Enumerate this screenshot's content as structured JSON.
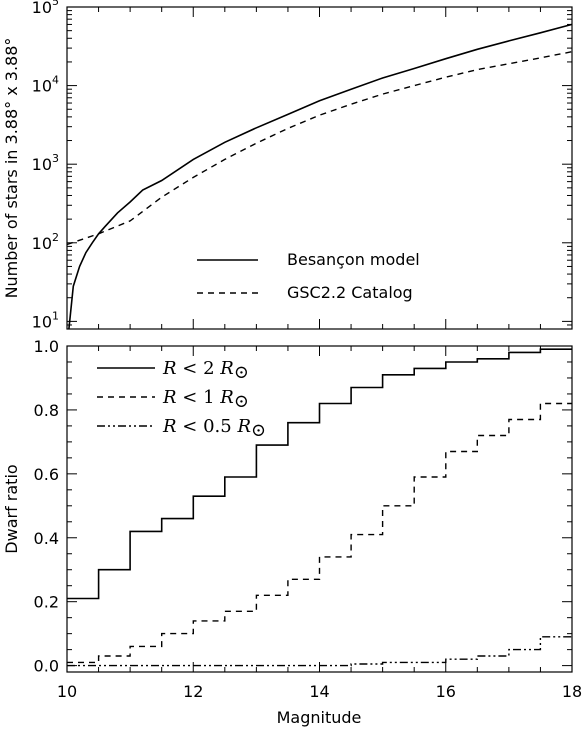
{
  "chart_data": [
    {
      "type": "line",
      "ylabel": "Number of stars in 3.88° x 3.88°",
      "xlabel": "",
      "xlim": [
        10,
        18
      ],
      "ylim": [
        8,
        100000
      ],
      "yscale": "log",
      "y_tick_labels": [
        {
          "base": "10",
          "exp": "1"
        },
        {
          "base": "10",
          "exp": "2"
        },
        {
          "base": "10",
          "exp": "3"
        },
        {
          "base": "10",
          "exp": "4"
        },
        {
          "base": "10",
          "exp": "5"
        }
      ],
      "y_tick_values": [
        10,
        100,
        1000,
        10000,
        100000
      ],
      "legend_position": "center-right",
      "series": [
        {
          "name": "Besançon model",
          "style": "solid",
          "x": [
            10.03,
            10.1,
            10.2,
            10.3,
            10.4,
            10.5,
            10.6,
            10.8,
            11.0,
            11.2,
            11.5,
            12.0,
            12.5,
            13.0,
            13.5,
            14.0,
            14.5,
            15.0,
            15.5,
            16.0,
            16.5,
            17.0,
            17.5,
            18.0
          ],
          "y": [
            8,
            28,
            50,
            75,
            100,
            130,
            160,
            240,
            330,
            470,
            620,
            1150,
            1900,
            2900,
            4300,
            6400,
            9000,
            12500,
            16500,
            22000,
            29000,
            37000,
            47000,
            60000
          ]
        },
        {
          "name": "GSC2.2 Catalog",
          "style": "dashed",
          "x": [
            10.0,
            10.5,
            11.0,
            11.5,
            12.0,
            12.5,
            13.0,
            13.5,
            14.0,
            14.5,
            15.0,
            15.5,
            16.0,
            16.5,
            17.0,
            17.5,
            18.0
          ],
          "y": [
            95,
            130,
            190,
            380,
            680,
            1150,
            1850,
            2850,
            4200,
            5800,
            7800,
            10000,
            12800,
            16000,
            19000,
            22500,
            27000
          ]
        }
      ]
    },
    {
      "type": "line",
      "ylabel": "Dwarf ratio",
      "xlabel": "Magnitude",
      "xlim": [
        10,
        18
      ],
      "ylim": [
        -0.02,
        1.0
      ],
      "x_ticks": [
        "10",
        "12",
        "14",
        "16",
        "18"
      ],
      "x_tick_values": [
        10,
        12,
        14,
        16,
        18
      ],
      "y_ticks": [
        "0.0",
        "0.2",
        "0.4",
        "0.6",
        "0.8",
        "1.0"
      ],
      "y_tick_values": [
        0.0,
        0.2,
        0.4,
        0.6,
        0.8,
        1.0
      ],
      "legend_position": "top-left",
      "step_edges": [
        10.0,
        10.5,
        11.0,
        11.5,
        12.0,
        12.5,
        13.0,
        13.5,
        14.0,
        14.5,
        15.0,
        15.5,
        16.0,
        16.5,
        17.0,
        17.5,
        18.0
      ],
      "series": [
        {
          "legend": {
            "var": "R",
            "rel": "<",
            "num": "2",
            "unit": "R",
            "sub": "⊙"
          },
          "style": "solid",
          "values": [
            0.21,
            0.3,
            0.42,
            0.46,
            0.53,
            0.59,
            0.69,
            0.76,
            0.82,
            0.87,
            0.91,
            0.93,
            0.95,
            0.96,
            0.98,
            0.99
          ]
        },
        {
          "legend": {
            "var": "R",
            "rel": "<",
            "num": "1",
            "unit": "R",
            "sub": "⊙"
          },
          "style": "dashed",
          "values": [
            0.01,
            0.03,
            0.06,
            0.1,
            0.14,
            0.17,
            0.22,
            0.27,
            0.34,
            0.41,
            0.5,
            0.59,
            0.67,
            0.72,
            0.77,
            0.82
          ]
        },
        {
          "legend": {
            "var": "R",
            "rel": "<",
            "num": "0.5",
            "unit": "R",
            "sub": "⊙"
          },
          "style": "dash-dot-dot",
          "values": [
            0.0,
            0.0,
            0.0,
            0.0,
            0.0,
            0.0,
            0.0,
            0.0,
            0.0,
            0.005,
            0.01,
            0.01,
            0.02,
            0.03,
            0.05,
            0.09
          ]
        }
      ]
    }
  ]
}
